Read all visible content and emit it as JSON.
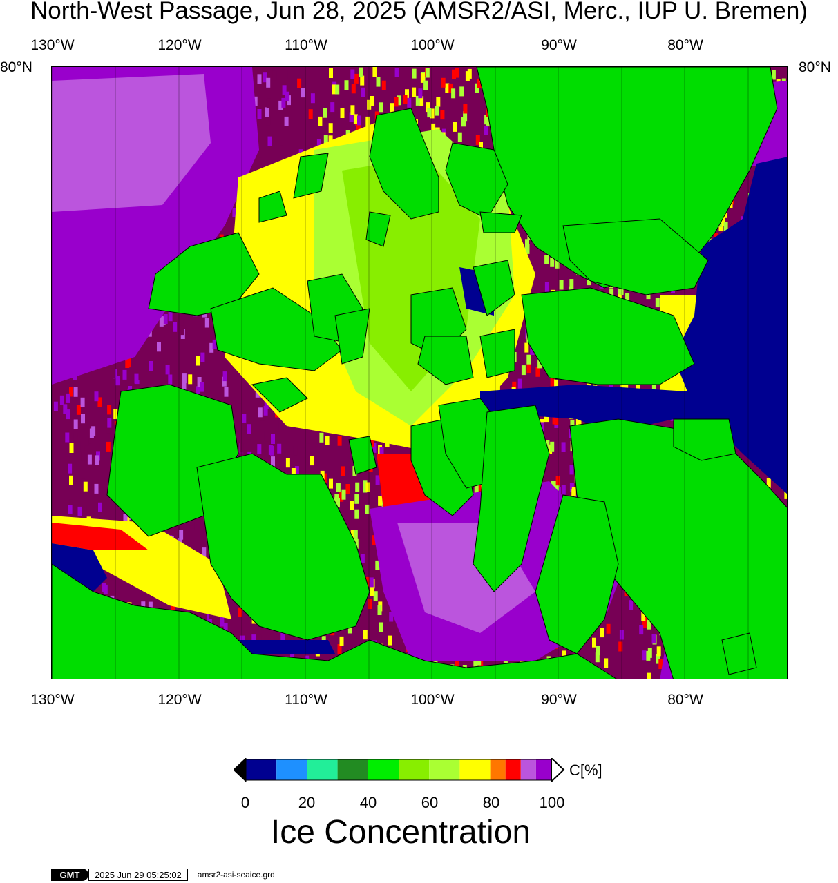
{
  "title": "North-West Passage, Jun 28, 2025 (AMSR2/ASI, Merc., IUP U. Bremen)",
  "map": {
    "lon_ticks": [
      "130°W",
      "120°W",
      "110°W",
      "100°W",
      "90°W",
      "80°W"
    ],
    "lat_tick": "80°N",
    "colors": {
      "land": "#00dd00",
      "open_water": "#000090",
      "ice_100": "#770055",
      "ice_95": "#9900cc",
      "ice_90": "#bb55dd",
      "ice_85": "#ff0000",
      "ice_80": "#ff7700",
      "ice_75": "#ffff00",
      "ice_65": "#aaff33",
      "ice_55": "#88ee00"
    }
  },
  "colorbar": {
    "label": "C[%]",
    "title": "Ice Concentration",
    "ticks": [
      "0",
      "20",
      "40",
      "60",
      "80",
      "100"
    ],
    "bins": [
      {
        "from": 0,
        "to": 10,
        "color": "#000090"
      },
      {
        "from": 10,
        "to": 20,
        "color": "#1e90ff"
      },
      {
        "from": 20,
        "to": 30,
        "color": "#22ee99"
      },
      {
        "from": 30,
        "to": 40,
        "color": "#228b22"
      },
      {
        "from": 40,
        "to": 50,
        "color": "#00ee00"
      },
      {
        "from": 50,
        "to": 60,
        "color": "#88ee00"
      },
      {
        "from": 60,
        "to": 70,
        "color": "#aaff33"
      },
      {
        "from": 70,
        "to": 80,
        "color": "#ffff00"
      },
      {
        "from": 80,
        "to": 85,
        "color": "#ff7700"
      },
      {
        "from": 85,
        "to": 90,
        "color": "#ff0000"
      },
      {
        "from": 90,
        "to": 95,
        "color": "#bb55dd"
      },
      {
        "from": 95,
        "to": 100,
        "color": "#9900cc"
      }
    ],
    "under_color": "#000000",
    "over_color": "#ffffff"
  },
  "stamp": {
    "logo": "GMT",
    "date": "2025 Jun 29 05:25:02",
    "file": "amsr2-asi-seaice.grd"
  }
}
